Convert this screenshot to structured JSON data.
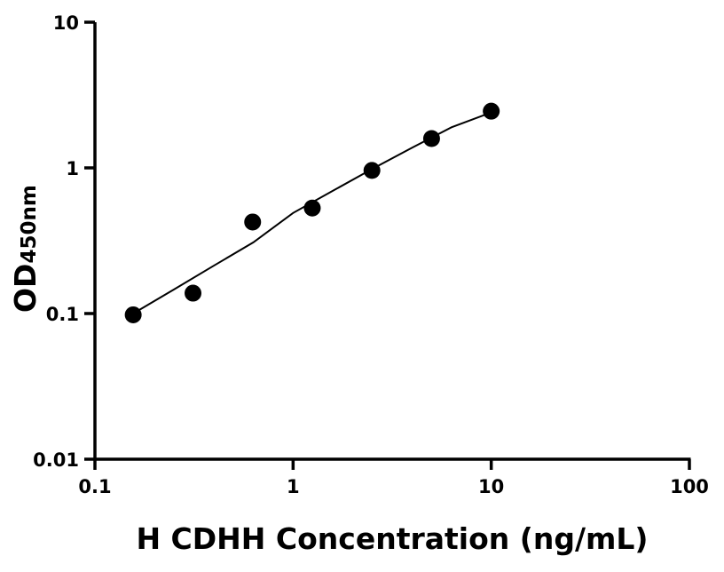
{
  "chart_data": {
    "type": "scatter",
    "title": "",
    "xlabel": "H CDHH Concentration (ng/mL)",
    "ylabel_main": "OD",
    "ylabel_sub": "450nm",
    "x_scale": "log",
    "y_scale": "log",
    "xlim": [
      0.1,
      100
    ],
    "ylim": [
      0.01,
      10
    ],
    "x_ticks": [
      0.1,
      1,
      10,
      100
    ],
    "x_tick_labels": [
      "0.1",
      "1",
      "10",
      "100"
    ],
    "y_ticks": [
      0.01,
      0.1,
      1,
      10
    ],
    "y_tick_labels": [
      "0.01",
      "0.1",
      "1",
      "10"
    ],
    "grid": false,
    "points": [
      {
        "x": 0.156,
        "y": 0.098
      },
      {
        "x": 0.3125,
        "y": 0.138
      },
      {
        "x": 0.625,
        "y": 0.425
      },
      {
        "x": 1.25,
        "y": 0.53
      },
      {
        "x": 2.5,
        "y": 0.96
      },
      {
        "x": 5,
        "y": 1.59
      },
      {
        "x": 10,
        "y": 2.45
      }
    ],
    "fit_curve": [
      {
        "x": 0.156,
        "y": 0.1
      },
      {
        "x": 0.25,
        "y": 0.146
      },
      {
        "x": 0.4,
        "y": 0.214
      },
      {
        "x": 0.63,
        "y": 0.308
      },
      {
        "x": 1,
        "y": 0.49
      },
      {
        "x": 1.6,
        "y": 0.7
      },
      {
        "x": 2.5,
        "y": 0.98
      },
      {
        "x": 4,
        "y": 1.38
      },
      {
        "x": 6.3,
        "y": 1.9
      },
      {
        "x": 10,
        "y": 2.4
      }
    ],
    "marker_color": "#000000",
    "line_color": "#000000"
  }
}
